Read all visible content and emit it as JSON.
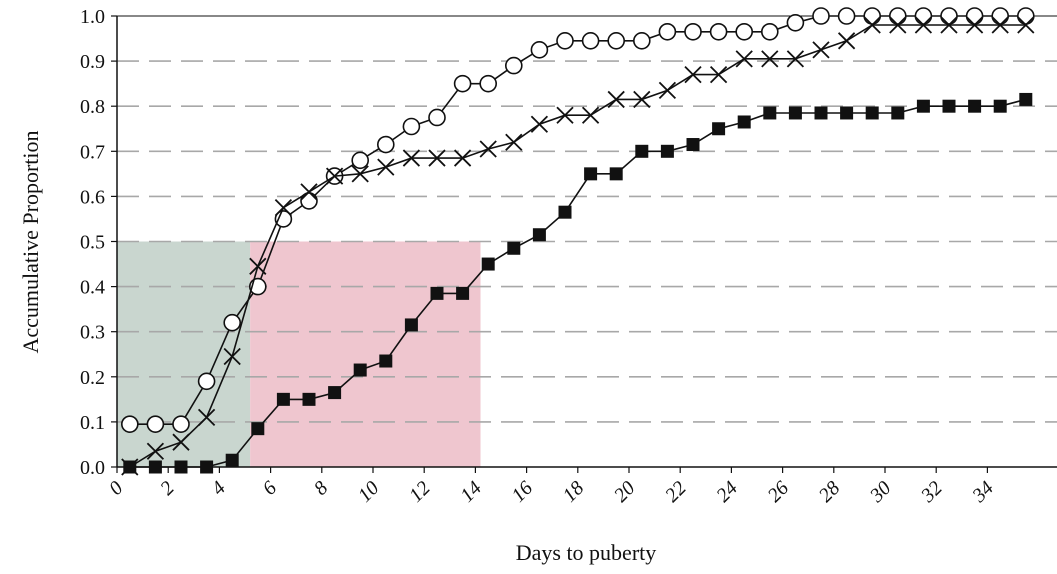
{
  "chart_data": {
    "type": "line",
    "title": "",
    "xlabel": "Days to puberty",
    "ylabel": "Accumulative Proportion",
    "xlim": [
      0,
      36
    ],
    "ylim": [
      0,
      1.0
    ],
    "grid": "horizontal-dashed",
    "x_ticks": [
      "0",
      "2",
      "4",
      "6",
      "8",
      "10",
      "12",
      "14",
      "16",
      "18",
      "20",
      "22",
      "24",
      "26",
      "28",
      "30",
      "32",
      "34"
    ],
    "y_ticks": [
      "0.0",
      "0.1",
      "0.2",
      "0.3",
      "0.4",
      "0.5",
      "0.6",
      "0.7",
      "0.8",
      "0.9",
      "1.0"
    ],
    "shaded_regions": [
      {
        "x": [
          0,
          5.2
        ],
        "y": [
          0,
          0.5
        ],
        "color": "#c9d6cf"
      },
      {
        "x": [
          5.2,
          14.2
        ],
        "y": [
          0,
          0.5
        ],
        "color": "#efc6cf"
      }
    ],
    "series": [
      {
        "marker": "open-circle",
        "x": [
          0.5,
          1.5,
          2.5,
          3.5,
          4.5,
          5.5,
          6.5,
          7.5,
          8.5,
          9.5,
          10.5,
          11.5,
          12.5,
          13.5,
          14.5,
          15.5,
          16.5,
          17.5,
          18.5,
          19.5,
          20.5,
          21.5,
          22.5,
          23.5,
          24.5,
          25.5,
          26.5,
          27.5,
          28.5,
          29.5,
          30.5,
          31.5,
          32.5,
          33.5,
          34.5,
          35.5
        ],
        "y": [
          0.095,
          0.095,
          0.095,
          0.19,
          0.32,
          0.4,
          0.55,
          0.59,
          0.645,
          0.68,
          0.715,
          0.755,
          0.775,
          0.85,
          0.85,
          0.89,
          0.925,
          0.945,
          0.945,
          0.945,
          0.945,
          0.965,
          0.965,
          0.965,
          0.965,
          0.965,
          0.985,
          1.0,
          1.0,
          1.0,
          1.0,
          1.0,
          1.0,
          1.0,
          1.0,
          1.0
        ]
      },
      {
        "marker": "cross",
        "x": [
          0.5,
          1.5,
          2.5,
          3.5,
          4.5,
          5.5,
          6.5,
          7.5,
          8.5,
          9.5,
          10.5,
          11.5,
          12.5,
          13.5,
          14.5,
          15.5,
          16.5,
          17.5,
          18.5,
          19.5,
          20.5,
          21.5,
          22.5,
          23.5,
          24.5,
          25.5,
          26.5,
          27.5,
          28.5,
          29.5,
          30.5,
          31.5,
          32.5,
          33.5,
          34.5,
          35.5
        ],
        "y": [
          0.0,
          0.035,
          0.055,
          0.11,
          0.245,
          0.445,
          0.575,
          0.61,
          0.645,
          0.65,
          0.665,
          0.685,
          0.685,
          0.685,
          0.705,
          0.72,
          0.76,
          0.78,
          0.78,
          0.815,
          0.815,
          0.835,
          0.87,
          0.87,
          0.905,
          0.905,
          0.905,
          0.925,
          0.945,
          0.98,
          0.98,
          0.98,
          0.98,
          0.98,
          0.98,
          0.98
        ]
      },
      {
        "marker": "filled-square",
        "x": [
          0.5,
          1.5,
          2.5,
          3.5,
          4.5,
          5.5,
          6.5,
          7.5,
          8.5,
          9.5,
          10.5,
          11.5,
          12.5,
          13.5,
          14.5,
          15.5,
          16.5,
          17.5,
          18.5,
          19.5,
          20.5,
          21.5,
          22.5,
          23.5,
          24.5,
          25.5,
          26.5,
          27.5,
          28.5,
          29.5,
          30.5,
          31.5,
          32.5,
          33.5,
          34.5,
          35.5
        ],
        "y": [
          0.0,
          0.0,
          0.0,
          0.0,
          0.015,
          0.085,
          0.15,
          0.15,
          0.165,
          0.215,
          0.235,
          0.315,
          0.385,
          0.385,
          0.45,
          0.485,
          0.515,
          0.565,
          0.65,
          0.65,
          0.7,
          0.7,
          0.715,
          0.75,
          0.765,
          0.785,
          0.785,
          0.785,
          0.785,
          0.785,
          0.785,
          0.8,
          0.8,
          0.8,
          0.8,
          0.815
        ]
      }
    ]
  }
}
